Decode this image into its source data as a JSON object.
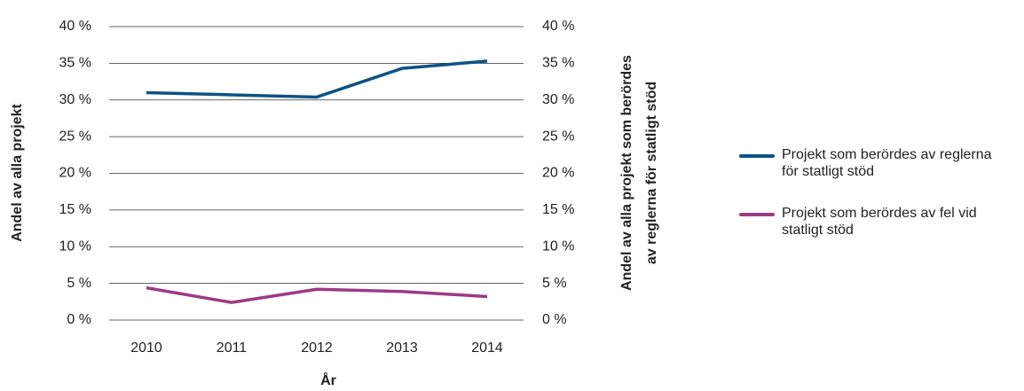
{
  "chart_data": {
    "type": "line",
    "xlabel": "År",
    "ylabel": "Andel av alla projekt",
    "y2label": [
      "Andel av alla projekt som berördes",
      "av reglerna för statligt stöd"
    ],
    "ylabel_color": "#0e5384",
    "y2label_color": "#9b3b86",
    "categories": [
      "2010",
      "2011",
      "2012",
      "2013",
      "2014"
    ],
    "series": [
      {
        "name": "Projekt som berördes av reglerna för statligt stöd",
        "color": "#0e5384",
        "values": [
          31.0,
          30.7,
          30.4,
          34.3,
          35.3
        ]
      },
      {
        "name": "Projekt som berördes av fel vid statligt stöd",
        "color": "#9b3b86",
        "axis": "y2",
        "values": [
          4.4,
          2.4,
          4.2,
          3.9,
          3.2
        ]
      }
    ],
    "ylim": [
      0,
      40
    ],
    "yticks": [
      {
        "value": 0,
        "label": "0 %"
      },
      {
        "value": 5,
        "label": "5 %"
      },
      {
        "value": 10,
        "label": "10 %"
      },
      {
        "value": 15,
        "label": "15 %"
      },
      {
        "value": 20,
        "label": "20 %"
      },
      {
        "value": 25,
        "label": "25 %"
      },
      {
        "value": 30,
        "label": "30 %"
      },
      {
        "value": 35,
        "label": "35 %"
      },
      {
        "value": 40,
        "label": "40 %"
      }
    ],
    "y2lim": [
      0,
      40
    ],
    "y2ticks": [
      {
        "value": 0,
        "label": "0 %"
      },
      {
        "value": 5,
        "label": "5 %"
      },
      {
        "value": 10,
        "label": "10 %"
      },
      {
        "value": 15,
        "label": "15 %"
      },
      {
        "value": 20,
        "label": "20 %"
      },
      {
        "value": 25,
        "label": "25 %"
      },
      {
        "value": 30,
        "label": "30 %"
      },
      {
        "value": 35,
        "label": "35 %"
      },
      {
        "value": 40,
        "label": "40 %"
      }
    ],
    "grid": true,
    "legend": "right"
  }
}
